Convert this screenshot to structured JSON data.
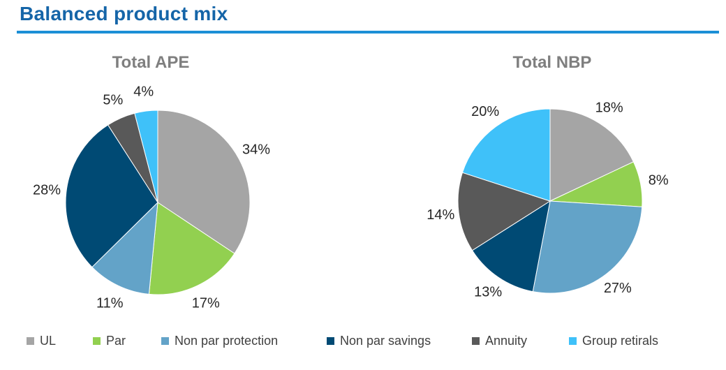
{
  "page": {
    "title": "Balanced product mix"
  },
  "chart_data": [
    {
      "type": "pie",
      "title": "Total APE",
      "categories": [
        "UL",
        "Par",
        "Non par protection",
        "Non par savings",
        "Annuity",
        "Group retirals"
      ],
      "values": [
        34,
        17,
        11,
        28,
        5,
        4
      ],
      "labels": [
        "34%",
        "17%",
        "11%",
        "28%",
        "5%",
        "4%"
      ]
    },
    {
      "type": "pie",
      "title": "Total NBP",
      "categories": [
        "UL",
        "Par",
        "Non par protection",
        "Non par savings",
        "Annuity",
        "Group retirals"
      ],
      "values": [
        18,
        8,
        27,
        13,
        14,
        20
      ],
      "labels": [
        "18%",
        "8%",
        "27%",
        "13%",
        "14%",
        "20%"
      ]
    }
  ],
  "legend": {
    "items": [
      {
        "label": "UL",
        "color": "#a5a5a5"
      },
      {
        "label": "Par",
        "color": "#92d050"
      },
      {
        "label": "Non par protection",
        "color": "#63a3c8"
      },
      {
        "label": "Non par savings",
        "color": "#004a74"
      },
      {
        "label": "Annuity",
        "color": "#595959"
      },
      {
        "label": "Group retirals",
        "color": "#3fc1f9"
      }
    ]
  }
}
